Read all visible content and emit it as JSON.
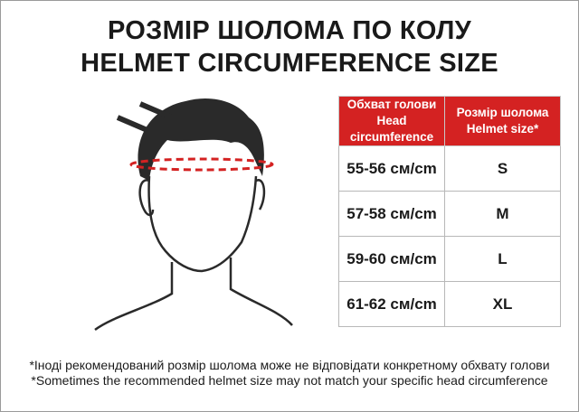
{
  "title": {
    "line1": "РОЗМІР ШОЛОМА ПО КОЛУ",
    "line2": "HELMET CIRCUMFERENCE SIZE"
  },
  "illustration": {
    "icon": "head-silhouette-icon",
    "measure_line_color": "#d42222"
  },
  "table": {
    "header_color": "#d42222",
    "headers": [
      {
        "line1": "Обхват голови",
        "line2": "Head circumference"
      },
      {
        "line1": "Розмір шолома",
        "line2": "Helmet size*"
      }
    ],
    "rows": [
      {
        "circumference": "55-56 см/cm",
        "size": "S"
      },
      {
        "circumference": "57-58 см/cm",
        "size": "M"
      },
      {
        "circumference": "59-60 см/cm",
        "size": "L"
      },
      {
        "circumference": "61-62 см/cm",
        "size": "XL"
      }
    ]
  },
  "notes": [
    "*Іноді рекомендований розмір шолома може не відповідати конкретному обхвату голови",
    "*Sometimes the recommended helmet size may not match your specific head circumference"
  ]
}
